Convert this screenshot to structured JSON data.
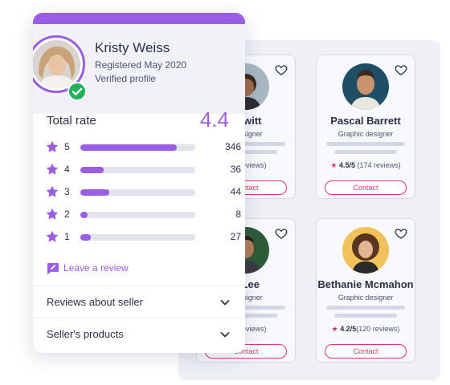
{
  "profile": {
    "name": "Kristy Weiss",
    "registered": "Registered May 2020",
    "verified": "Verified profile",
    "total_rate_label": "Total rate",
    "total_rate_value": "4.4",
    "ratings": [
      {
        "stars": "5",
        "count": "346",
        "fraction": 0.84
      },
      {
        "stars": "4",
        "count": "36",
        "fraction": 0.2
      },
      {
        "stars": "3",
        "count": "44",
        "fraction": 0.25
      },
      {
        "stars": "2",
        "count": "8",
        "fraction": 0.06
      },
      {
        "stars": "1",
        "count": "27",
        "fraction": 0.09
      }
    ],
    "leave_review": "Leave a review",
    "accordions": [
      {
        "label": "Reviews about seller"
      },
      {
        "label": "Seller's products"
      }
    ]
  },
  "sellers": [
    {
      "name": "Hewitt",
      "role": "c designer",
      "rating": "",
      "reviews": "260 reviews)",
      "contact": "Contact"
    },
    {
      "name": "Pascal Barrett",
      "role": "Graphic designer",
      "rating": "4.5/5",
      "reviews": "(174 reviews)",
      "contact": "Contact"
    },
    {
      "name": "d Lee",
      "role": "c designer",
      "rating": "",
      "reviews": "180 reviews)",
      "contact": "Contact"
    },
    {
      "name": "Bethanie Mcmahon",
      "role": "Graphic designer",
      "rating": "4.2/5",
      "reviews": "(120 reviews)",
      "contact": "Contact"
    }
  ],
  "colors": {
    "accent": "#9b5de5",
    "contact": "#e0356b",
    "verified": "#23b25a",
    "track": "#e1e3ee"
  },
  "icons": {
    "favorite": "heart-outline-icon",
    "rating_star": "star-icon",
    "verified": "check-badge-icon",
    "review": "edit-message-icon",
    "expand": "chevron-down-icon"
  }
}
